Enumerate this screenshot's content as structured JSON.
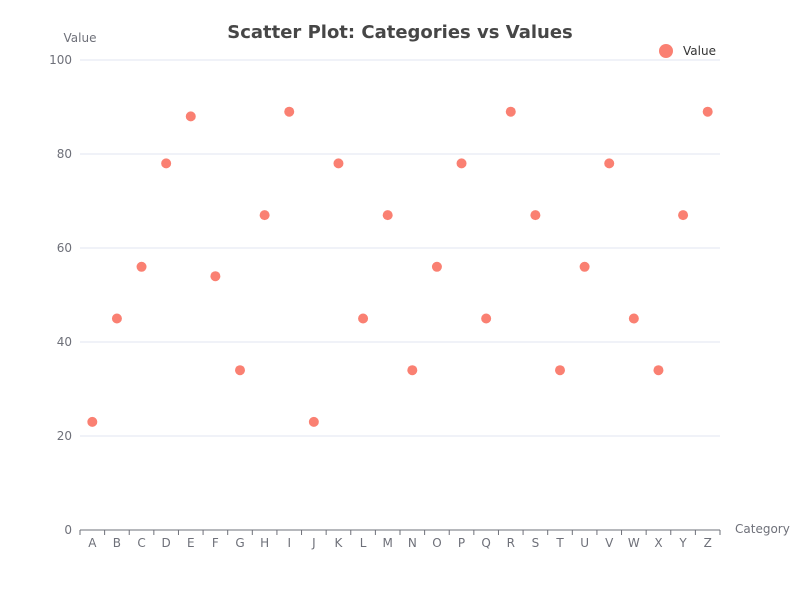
{
  "chart_data": {
    "type": "scatter",
    "title": "Scatter Plot: Categories vs Values",
    "xlabel": "Category",
    "ylabel": "Value",
    "categories": [
      "A",
      "B",
      "C",
      "D",
      "E",
      "F",
      "G",
      "H",
      "I",
      "J",
      "K",
      "L",
      "M",
      "N",
      "O",
      "P",
      "Q",
      "R",
      "S",
      "T",
      "U",
      "V",
      "W",
      "X",
      "Y",
      "Z"
    ],
    "series": [
      {
        "name": "Value",
        "color": "#fa8072",
        "values": [
          23,
          45,
          56,
          78,
          88,
          54,
          34,
          67,
          89,
          23,
          78,
          45,
          67,
          34,
          56,
          78,
          45,
          89,
          67,
          34,
          56,
          78,
          45,
          34,
          67,
          89
        ]
      }
    ],
    "ylim": [
      0,
      100
    ],
    "yticks": [
      0,
      20,
      40,
      60,
      80,
      100
    ],
    "grid": true,
    "legend_position": "top-right",
    "colors": {
      "grid": "#e0e6f1",
      "axis": "#6e7079",
      "title": "#464646"
    }
  }
}
